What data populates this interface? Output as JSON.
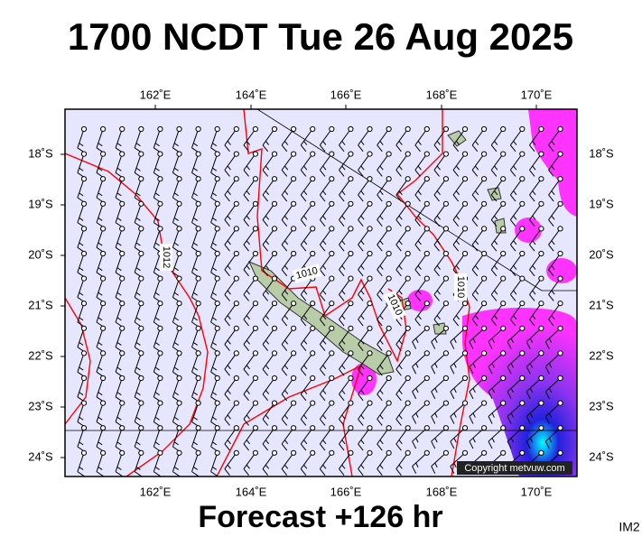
{
  "header": {
    "title": "1700 NCDT Tue 26 Aug 2025"
  },
  "map": {
    "lon_labels": [
      "162˚E",
      "164˚E",
      "166˚E",
      "168˚E",
      "170˚E"
    ],
    "lat_labels": [
      "18˚S",
      "19˚S",
      "20˚S",
      "21˚S",
      "22˚S",
      "23˚S",
      "24˚S"
    ],
    "contour_labels": [
      "1012",
      "1010",
      "1010",
      "1010"
    ],
    "copyright": "Copyright metvuw.com"
  },
  "footer": {
    "caption": "Forecast +126 hr",
    "id": "IM2"
  }
}
